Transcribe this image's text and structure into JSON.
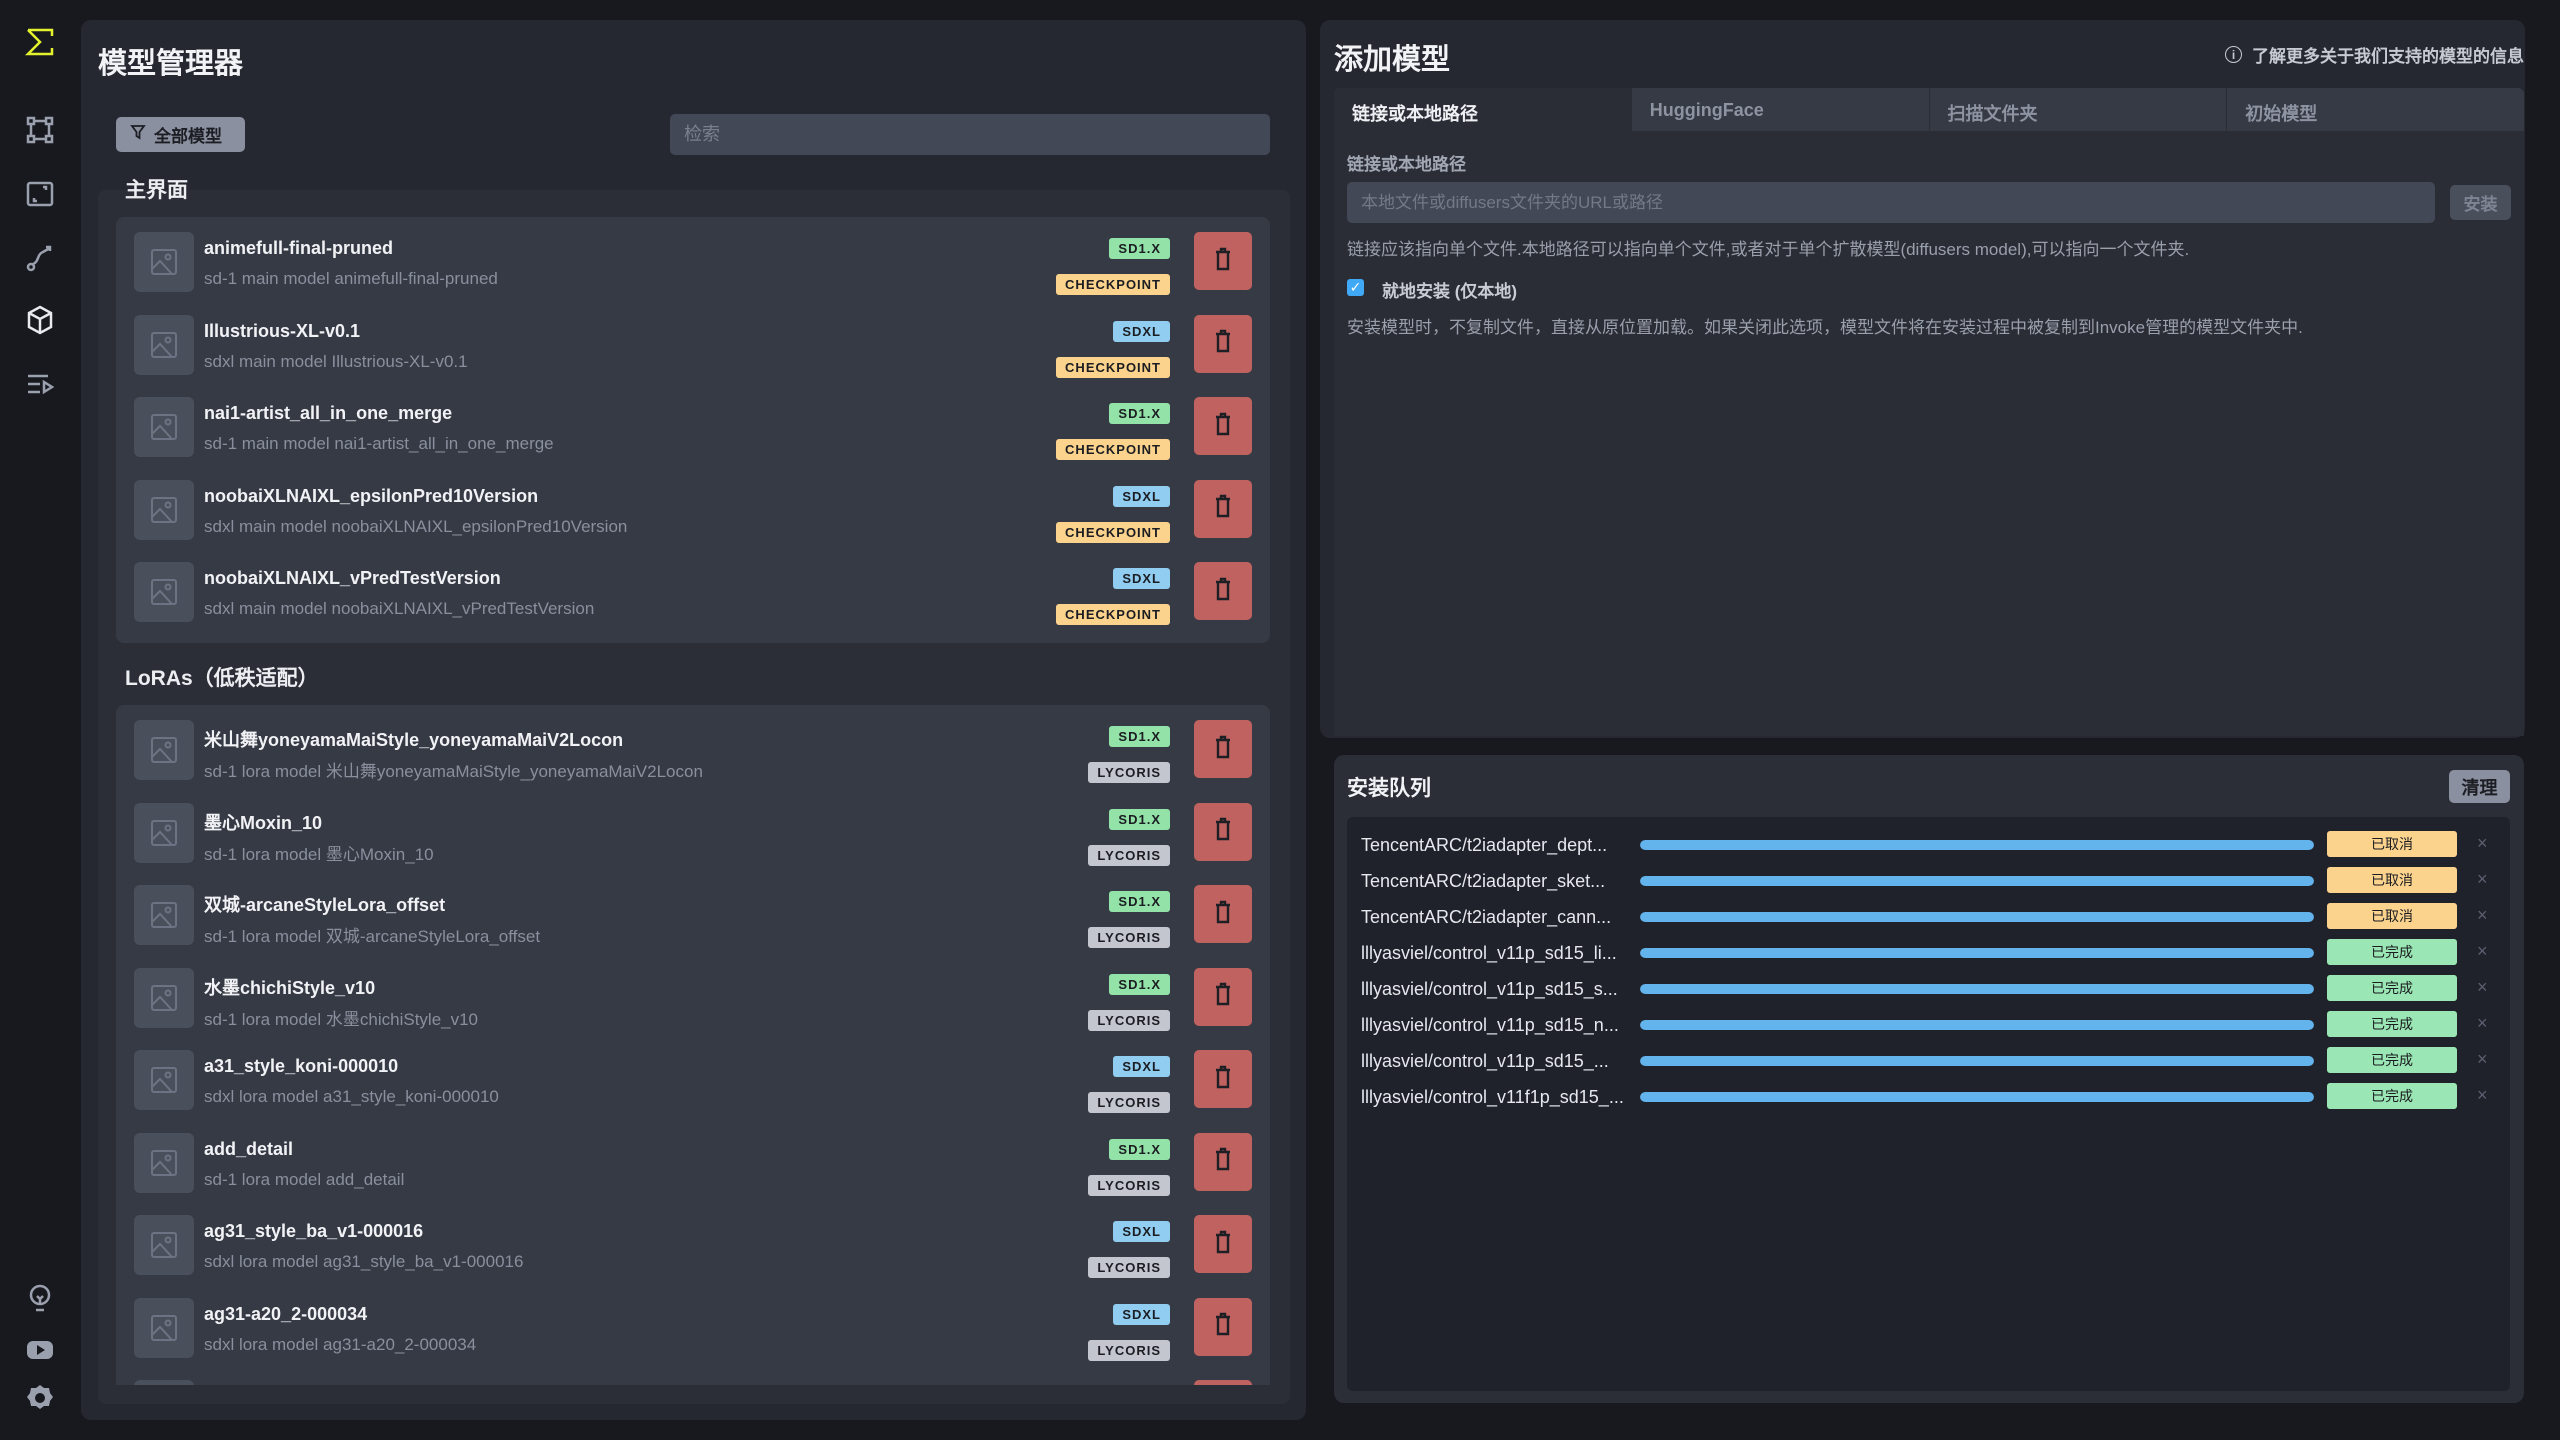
{
  "sidebar": {
    "icons": [
      "invoke-logo-icon",
      "workflow-nodes-icon",
      "canvas-icon",
      "curve-icon",
      "model-cube-icon",
      "queue-list-icon",
      "lightbulb-icon",
      "youtube-icon",
      "gear-icon"
    ]
  },
  "model_manager": {
    "title": "模型管理器",
    "filter_label": "全部模型",
    "search_placeholder": "检索",
    "sections": [
      {
        "heading": "主界面",
        "models": [
          {
            "name": "animefull-final-pruned",
            "desc": "sd-1 main model animefull-final-pruned",
            "base": "SD1.X",
            "type": "CHECKPOINT"
          },
          {
            "name": "Illustrious-XL-v0.1",
            "desc": "sdxl main model Illustrious-XL-v0.1",
            "base": "SDXL",
            "type": "CHECKPOINT"
          },
          {
            "name": "nai1-artist_all_in_one_merge",
            "desc": "sd-1 main model nai1-artist_all_in_one_merge",
            "base": "SD1.X",
            "type": "CHECKPOINT"
          },
          {
            "name": "noobaiXLNAIXL_epsilonPred10Version",
            "desc": "sdxl main model noobaiXLNAIXL_epsilonPred10Version",
            "base": "SDXL",
            "type": "CHECKPOINT"
          },
          {
            "name": "noobaiXLNAIXL_vPredTestVersion",
            "desc": "sdxl main model noobaiXLNAIXL_vPredTestVersion",
            "base": "SDXL",
            "type": "CHECKPOINT"
          }
        ]
      },
      {
        "heading": "LoRAs（低秩适配）",
        "models": [
          {
            "name": "米山舞yoneyamaMaiStyle_yoneyamaMaiV2Locon",
            "desc": "sd-1 lora model 米山舞yoneyamaMaiStyle_yoneyamaMaiV2Locon",
            "base": "SD1.X",
            "type": "LYCORIS"
          },
          {
            "name": "墨心Moxin_10",
            "desc": "sd-1 lora model 墨心Moxin_10",
            "base": "SD1.X",
            "type": "LYCORIS"
          },
          {
            "name": "双城-arcaneStyleLora_offset",
            "desc": "sd-1 lora model 双城-arcaneStyleLora_offset",
            "base": "SD1.X",
            "type": "LYCORIS"
          },
          {
            "name": "水墨chichiStyle_v10",
            "desc": "sd-1 lora model 水墨chichiStyle_v10",
            "base": "SD1.X",
            "type": "LYCORIS"
          },
          {
            "name": "a31_style_koni-000010",
            "desc": "sdxl lora model a31_style_koni-000010",
            "base": "SDXL",
            "type": "LYCORIS"
          },
          {
            "name": "add_detail",
            "desc": "sd-1 lora model add_detail",
            "base": "SD1.X",
            "type": "LYCORIS"
          },
          {
            "name": "ag31_style_ba_v1-000016",
            "desc": "sdxl lora model ag31_style_ba_v1-000016",
            "base": "SDXL",
            "type": "LYCORIS"
          },
          {
            "name": "ag31-a20_2-000034",
            "desc": "sdxl lora model ag31-a20_2-000034",
            "base": "SDXL",
            "type": "LYCORIS"
          }
        ]
      }
    ]
  },
  "colors": {
    "SD1.X": "#93e3a8",
    "SDXL": "#90cdf0",
    "CHECKPOINT": "#fbd38d",
    "LYCORIS": "#c3c6cf",
    "cancelled": "#fbd38d",
    "completed": "#9ae6b4",
    "progress": "#63b3ed",
    "delete": "#c0625f"
  },
  "add_model": {
    "title": "添加模型",
    "info_link": "了解更多关于我们支持的模型的信息",
    "tabs": [
      {
        "label": "链接或本地路径",
        "active": true
      },
      {
        "label": "HuggingFace"
      },
      {
        "label": "扫描文件夹"
      },
      {
        "label": "初始模型"
      }
    ],
    "field_label": "链接或本地路径",
    "url_placeholder": "本地文件或diffusers文件夹的URL或路径",
    "install_label": "安装",
    "help_text": "链接应该指向单个文件.本地路径可以指向单个文件,或者对于单个扩散模型(diffusers model),可以指向一个文件夹.",
    "inplace_label": "就地安装 (仅本地)",
    "inplace_checked": true,
    "inplace_help": "安装模型时，不复制文件，直接从原位置加载。如果关闭此选项，模型文件将在安装过程中被复制到Invoke管理的模型文件夹中."
  },
  "queue": {
    "title": "安装队列",
    "clear_label": "清理",
    "items": [
      {
        "name": "TencentARC/t2iadapter_dept...",
        "progress": 100,
        "status": "已取消",
        "state": "cancelled"
      },
      {
        "name": "TencentARC/t2iadapter_sket...",
        "progress": 100,
        "status": "已取消",
        "state": "cancelled"
      },
      {
        "name": "TencentARC/t2iadapter_cann...",
        "progress": 100,
        "status": "已取消",
        "state": "cancelled"
      },
      {
        "name": "lllyasviel/control_v11p_sd15_li...",
        "progress": 100,
        "status": "已完成",
        "state": "completed"
      },
      {
        "name": "lllyasviel/control_v11p_sd15_s...",
        "progress": 100,
        "status": "已完成",
        "state": "completed"
      },
      {
        "name": "lllyasviel/control_v11p_sd15_n...",
        "progress": 100,
        "status": "已完成",
        "state": "completed"
      },
      {
        "name": "lllyasviel/control_v11p_sd15_...",
        "progress": 100,
        "status": "已完成",
        "state": "completed"
      },
      {
        "name": "lllyasviel/control_v11f1p_sd15_...",
        "progress": 100,
        "status": "已完成",
        "state": "completed"
      }
    ]
  }
}
